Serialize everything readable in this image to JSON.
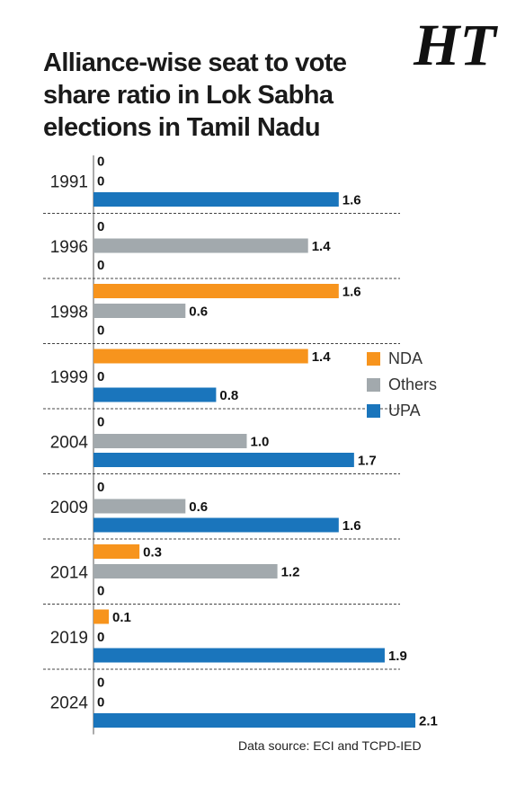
{
  "title": "Alliance-wise seat to vote share ratio in Lok Sabha elections in Tamil Nadu",
  "logo_text": "HT",
  "source": "Data source: ECI and TCPD-IED",
  "chart_data": {
    "type": "bar",
    "orientation": "horizontal",
    "title": "Alliance-wise seat to vote share ratio in Lok Sabha elections in Tamil Nadu",
    "categories": [
      "1991",
      "1996",
      "1998",
      "1999",
      "2004",
      "2009",
      "2014",
      "2019",
      "2024"
    ],
    "series": [
      {
        "name": "NDA",
        "color": "#f7941d",
        "values": [
          0,
          0,
          1.6,
          1.4,
          0,
          0,
          0.3,
          0.1,
          0
        ],
        "labels": [
          "0",
          "0",
          "1.6",
          "1.4",
          "0",
          "0",
          "0.3",
          "0.1",
          "0"
        ]
      },
      {
        "name": "Others",
        "color": "#a2a9ad",
        "values": [
          0,
          1.4,
          0.6,
          0,
          1.0,
          0.6,
          1.2,
          0,
          0
        ],
        "labels": [
          "0",
          "1.4",
          "0.6",
          "0",
          "1.0",
          "0.6",
          "1.2",
          "0",
          "0"
        ]
      },
      {
        "name": "UPA",
        "color": "#1a75bc",
        "values": [
          1.6,
          0,
          0,
          0.8,
          1.7,
          1.6,
          0,
          1.9,
          2.1
        ],
        "labels": [
          "1.6",
          "0",
          "0",
          "0.8",
          "1.7",
          "1.6",
          "0",
          "1.9",
          "2.1"
        ]
      }
    ],
    "xlim": [
      0,
      2.1
    ],
    "grid": false,
    "legend_position": "right"
  }
}
